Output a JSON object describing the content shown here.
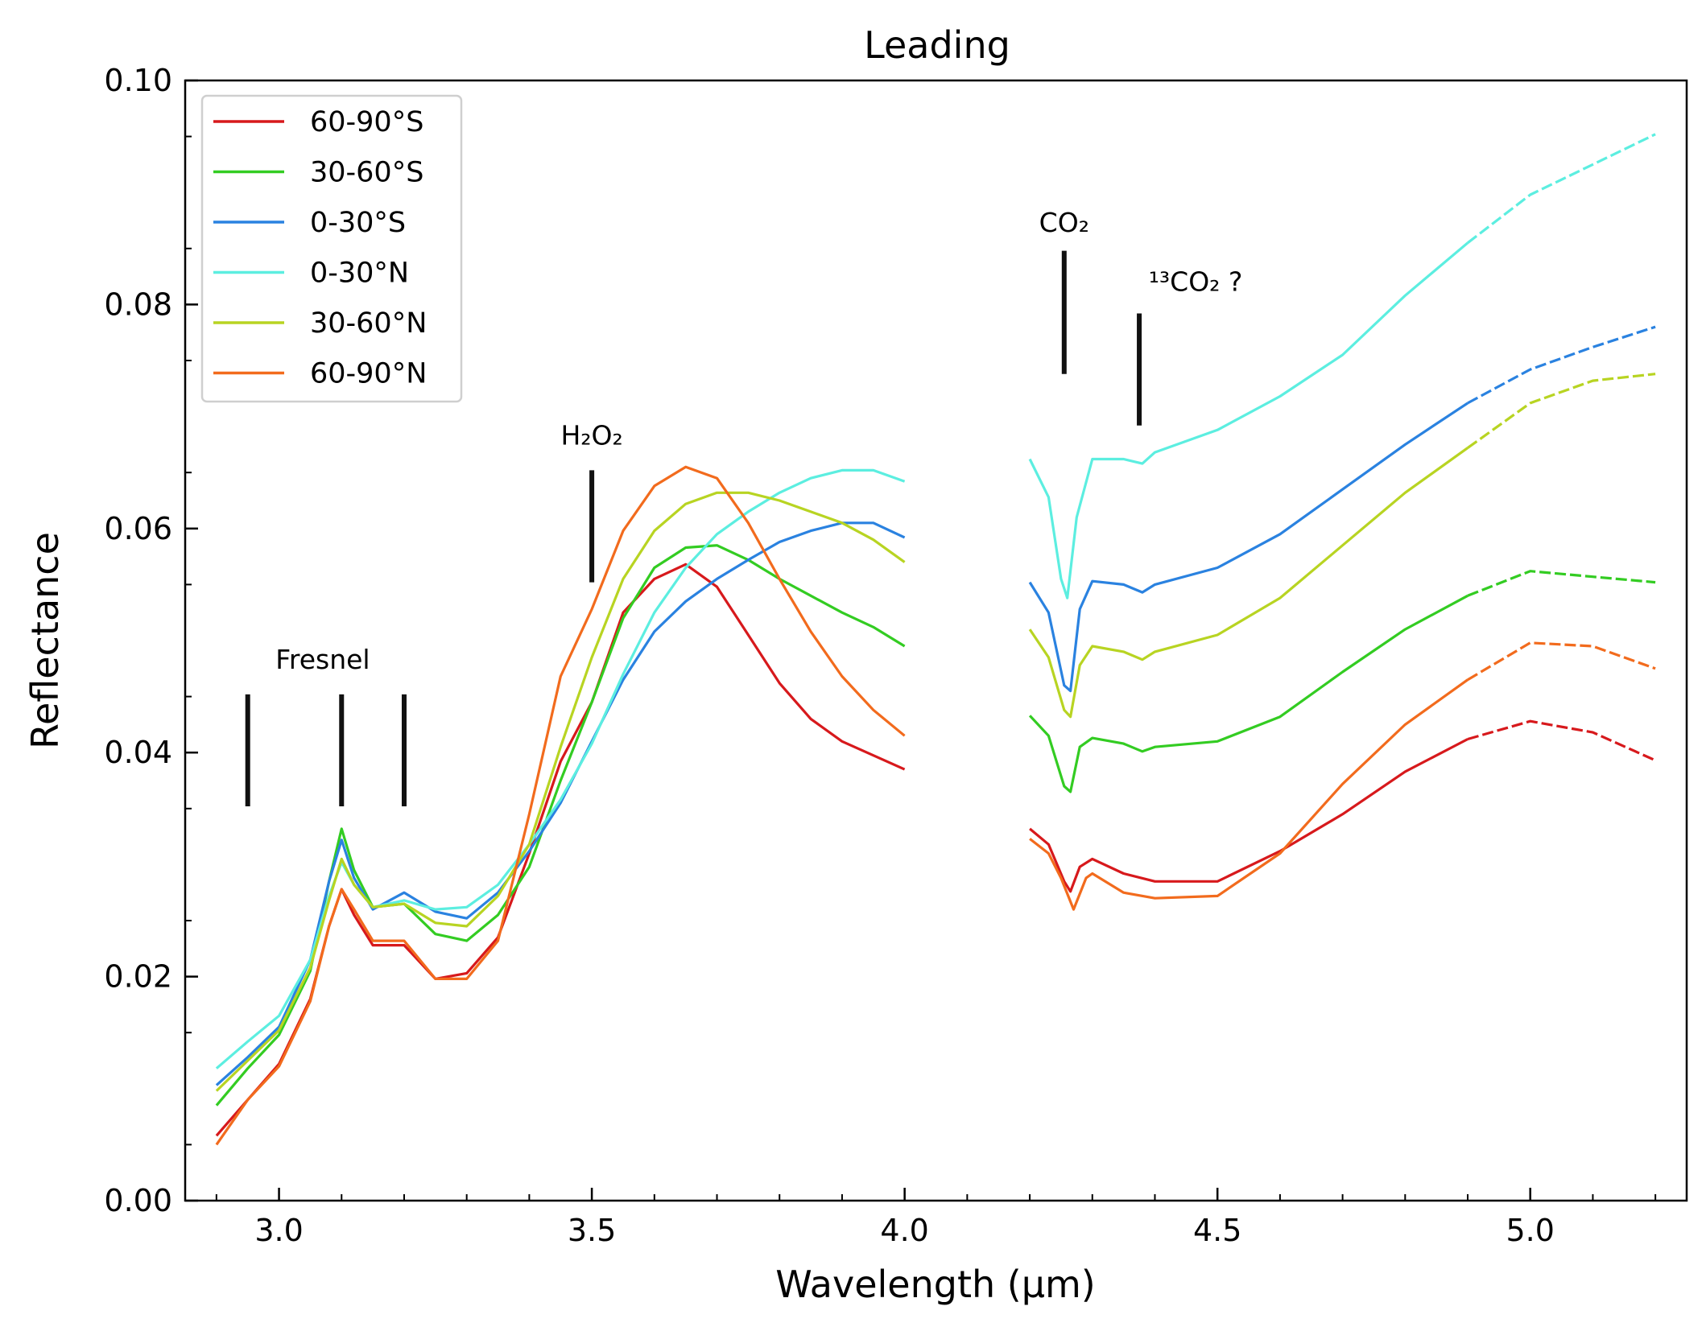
{
  "chart_data": {
    "type": "line",
    "title": "Leading",
    "xlabel": "Wavelength (μm)",
    "ylabel": "Reflectance",
    "xlim": [
      2.85,
      5.25
    ],
    "ylim": [
      0.0,
      0.1
    ],
    "xticks": [
      3.0,
      3.5,
      4.0,
      4.5,
      5.0
    ],
    "xtick_labels": [
      "3.0",
      "3.5",
      "4.0",
      "4.5",
      "5.0"
    ],
    "yticks": [
      0.0,
      0.02,
      0.04,
      0.06,
      0.08,
      0.1
    ],
    "ytick_labels": [
      "0.00",
      "0.02",
      "0.04",
      "0.06",
      "0.08",
      "0.10"
    ],
    "grid": false,
    "legend_position": "top-left",
    "segments_note_dashed_above": 4.95,
    "series": [
      {
        "name": "60-90°S",
        "color": "#d7191c",
        "segment1": [
          [
            2.9,
            0.0058
          ],
          [
            2.95,
            0.009
          ],
          [
            3.0,
            0.0122
          ],
          [
            3.05,
            0.018
          ],
          [
            3.08,
            0.0245
          ],
          [
            3.1,
            0.0278
          ],
          [
            3.12,
            0.0255
          ],
          [
            3.15,
            0.0228
          ],
          [
            3.2,
            0.0228
          ],
          [
            3.25,
            0.0198
          ],
          [
            3.3,
            0.0203
          ],
          [
            3.35,
            0.0235
          ],
          [
            3.4,
            0.031
          ],
          [
            3.45,
            0.0392
          ],
          [
            3.5,
            0.0445
          ],
          [
            3.55,
            0.0525
          ],
          [
            3.6,
            0.0555
          ],
          [
            3.65,
            0.0568
          ],
          [
            3.7,
            0.0548
          ],
          [
            3.75,
            0.0505
          ],
          [
            3.8,
            0.0462
          ],
          [
            3.85,
            0.043
          ],
          [
            3.9,
            0.041
          ],
          [
            4.0,
            0.0385
          ]
        ],
        "segment2": [
          [
            4.2,
            0.0332
          ],
          [
            4.23,
            0.0318
          ],
          [
            4.255,
            0.0285
          ],
          [
            4.265,
            0.0276
          ],
          [
            4.28,
            0.0298
          ],
          [
            4.3,
            0.0305
          ],
          [
            4.35,
            0.0292
          ],
          [
            4.4,
            0.0285
          ],
          [
            4.5,
            0.0285
          ],
          [
            4.6,
            0.0312
          ],
          [
            4.7,
            0.0345
          ],
          [
            4.8,
            0.0383
          ],
          [
            4.9,
            0.0412
          ],
          [
            5.0,
            0.0428
          ],
          [
            5.1,
            0.0418
          ],
          [
            5.2,
            0.0393
          ]
        ]
      },
      {
        "name": "30-60°S",
        "color": "#33cc22",
        "segment1": [
          [
            2.9,
            0.0085
          ],
          [
            2.95,
            0.0118
          ],
          [
            3.0,
            0.0148
          ],
          [
            3.05,
            0.0205
          ],
          [
            3.08,
            0.0285
          ],
          [
            3.1,
            0.0332
          ],
          [
            3.12,
            0.0295
          ],
          [
            3.15,
            0.0262
          ],
          [
            3.2,
            0.0265
          ],
          [
            3.25,
            0.0238
          ],
          [
            3.3,
            0.0232
          ],
          [
            3.35,
            0.0255
          ],
          [
            3.4,
            0.0298
          ],
          [
            3.45,
            0.0375
          ],
          [
            3.5,
            0.0445
          ],
          [
            3.55,
            0.052
          ],
          [
            3.6,
            0.0565
          ],
          [
            3.65,
            0.0583
          ],
          [
            3.7,
            0.0585
          ],
          [
            3.75,
            0.0572
          ],
          [
            3.8,
            0.0555
          ],
          [
            3.85,
            0.054
          ],
          [
            3.9,
            0.0525
          ],
          [
            3.95,
            0.0512
          ],
          [
            4.0,
            0.0495
          ]
        ],
        "segment2": [
          [
            4.2,
            0.0433
          ],
          [
            4.23,
            0.0415
          ],
          [
            4.255,
            0.037
          ],
          [
            4.265,
            0.0365
          ],
          [
            4.28,
            0.0405
          ],
          [
            4.3,
            0.0413
          ],
          [
            4.35,
            0.0408
          ],
          [
            4.38,
            0.0401
          ],
          [
            4.4,
            0.0405
          ],
          [
            4.5,
            0.041
          ],
          [
            4.6,
            0.0432
          ],
          [
            4.7,
            0.0472
          ],
          [
            4.8,
            0.051
          ],
          [
            4.9,
            0.054
          ],
          [
            5.0,
            0.0562
          ],
          [
            5.1,
            0.0557
          ],
          [
            5.2,
            0.0552
          ]
        ]
      },
      {
        "name": "0-30°S",
        "color": "#2a82e0",
        "segment1": [
          [
            2.9,
            0.0103
          ],
          [
            2.95,
            0.0128
          ],
          [
            3.0,
            0.0155
          ],
          [
            3.05,
            0.0215
          ],
          [
            3.08,
            0.0285
          ],
          [
            3.1,
            0.0322
          ],
          [
            3.12,
            0.0288
          ],
          [
            3.15,
            0.026
          ],
          [
            3.2,
            0.0275
          ],
          [
            3.25,
            0.0258
          ],
          [
            3.3,
            0.0252
          ],
          [
            3.35,
            0.0275
          ],
          [
            3.4,
            0.0312
          ],
          [
            3.45,
            0.0355
          ],
          [
            3.5,
            0.041
          ],
          [
            3.55,
            0.0465
          ],
          [
            3.6,
            0.0508
          ],
          [
            3.65,
            0.0535
          ],
          [
            3.7,
            0.0555
          ],
          [
            3.75,
            0.0572
          ],
          [
            3.8,
            0.0588
          ],
          [
            3.85,
            0.0598
          ],
          [
            3.9,
            0.0605
          ],
          [
            3.95,
            0.0605
          ],
          [
            4.0,
            0.0592
          ]
        ],
        "segment2": [
          [
            4.2,
            0.0552
          ],
          [
            4.23,
            0.0525
          ],
          [
            4.255,
            0.046
          ],
          [
            4.265,
            0.0455
          ],
          [
            4.28,
            0.0528
          ],
          [
            4.3,
            0.0553
          ],
          [
            4.35,
            0.055
          ],
          [
            4.38,
            0.0543
          ],
          [
            4.4,
            0.055
          ],
          [
            4.5,
            0.0565
          ],
          [
            4.6,
            0.0595
          ],
          [
            4.7,
            0.0635
          ],
          [
            4.8,
            0.0675
          ],
          [
            4.9,
            0.0712
          ],
          [
            5.0,
            0.0742
          ],
          [
            5.1,
            0.0762
          ],
          [
            5.2,
            0.078
          ]
        ]
      },
      {
        "name": "0-30°N",
        "color": "#5ceee0",
        "segment1": [
          [
            2.9,
            0.0118
          ],
          [
            2.95,
            0.0142
          ],
          [
            3.0,
            0.0165
          ],
          [
            3.05,
            0.0215
          ],
          [
            3.08,
            0.0272
          ],
          [
            3.1,
            0.0302
          ],
          [
            3.12,
            0.0282
          ],
          [
            3.15,
            0.0262
          ],
          [
            3.2,
            0.0268
          ],
          [
            3.25,
            0.026
          ],
          [
            3.3,
            0.0262
          ],
          [
            3.35,
            0.0282
          ],
          [
            3.4,
            0.0318
          ],
          [
            3.45,
            0.0358
          ],
          [
            3.5,
            0.0408
          ],
          [
            3.55,
            0.047
          ],
          [
            3.6,
            0.0525
          ],
          [
            3.65,
            0.0565
          ],
          [
            3.7,
            0.0595
          ],
          [
            3.75,
            0.0615
          ],
          [
            3.8,
            0.0632
          ],
          [
            3.85,
            0.0645
          ],
          [
            3.9,
            0.0652
          ],
          [
            3.95,
            0.0652
          ],
          [
            4.0,
            0.0642
          ]
        ],
        "segment2": [
          [
            4.2,
            0.0662
          ],
          [
            4.23,
            0.0628
          ],
          [
            4.25,
            0.0555
          ],
          [
            4.26,
            0.0538
          ],
          [
            4.275,
            0.061
          ],
          [
            4.3,
            0.0662
          ],
          [
            4.35,
            0.0662
          ],
          [
            4.38,
            0.0658
          ],
          [
            4.4,
            0.0668
          ],
          [
            4.5,
            0.0688
          ],
          [
            4.6,
            0.0718
          ],
          [
            4.7,
            0.0755
          ],
          [
            4.8,
            0.0808
          ],
          [
            4.9,
            0.0855
          ],
          [
            5.0,
            0.0898
          ],
          [
            5.1,
            0.0925
          ],
          [
            5.2,
            0.0952
          ]
        ]
      },
      {
        "name": "30-60°N",
        "color": "#b8d422",
        "segment1": [
          [
            2.9,
            0.0098
          ],
          [
            2.95,
            0.0125
          ],
          [
            3.0,
            0.0152
          ],
          [
            3.05,
            0.0208
          ],
          [
            3.08,
            0.0268
          ],
          [
            3.1,
            0.0305
          ],
          [
            3.12,
            0.0282
          ],
          [
            3.15,
            0.0262
          ],
          [
            3.2,
            0.0265
          ],
          [
            3.25,
            0.0248
          ],
          [
            3.3,
            0.0245
          ],
          [
            3.35,
            0.0272
          ],
          [
            3.4,
            0.0318
          ],
          [
            3.45,
            0.0405
          ],
          [
            3.5,
            0.0485
          ],
          [
            3.55,
            0.0555
          ],
          [
            3.6,
            0.0598
          ],
          [
            3.65,
            0.0622
          ],
          [
            3.7,
            0.0632
          ],
          [
            3.75,
            0.0632
          ],
          [
            3.8,
            0.0625
          ],
          [
            3.85,
            0.0615
          ],
          [
            3.9,
            0.0605
          ],
          [
            3.95,
            0.059
          ],
          [
            4.0,
            0.057
          ]
        ],
        "segment2": [
          [
            4.2,
            0.051
          ],
          [
            4.23,
            0.0485
          ],
          [
            4.255,
            0.0438
          ],
          [
            4.265,
            0.0432
          ],
          [
            4.28,
            0.0478
          ],
          [
            4.3,
            0.0495
          ],
          [
            4.35,
            0.049
          ],
          [
            4.38,
            0.0483
          ],
          [
            4.4,
            0.049
          ],
          [
            4.5,
            0.0505
          ],
          [
            4.6,
            0.0538
          ],
          [
            4.7,
            0.0585
          ],
          [
            4.8,
            0.0632
          ],
          [
            4.9,
            0.0672
          ],
          [
            5.0,
            0.0712
          ],
          [
            5.1,
            0.0732
          ],
          [
            5.2,
            0.0738
          ]
        ]
      },
      {
        "name": "60-90°N",
        "color": "#f26b1d",
        "segment1": [
          [
            2.9,
            0.005
          ],
          [
            2.95,
            0.009
          ],
          [
            3.0,
            0.012
          ],
          [
            3.05,
            0.0178
          ],
          [
            3.08,
            0.0245
          ],
          [
            3.1,
            0.0278
          ],
          [
            3.12,
            0.026
          ],
          [
            3.15,
            0.0232
          ],
          [
            3.2,
            0.0232
          ],
          [
            3.25,
            0.0198
          ],
          [
            3.3,
            0.0198
          ],
          [
            3.35,
            0.0232
          ],
          [
            3.4,
            0.0345
          ],
          [
            3.45,
            0.0468
          ],
          [
            3.5,
            0.0528
          ],
          [
            3.55,
            0.0598
          ],
          [
            3.6,
            0.0638
          ],
          [
            3.65,
            0.0655
          ],
          [
            3.7,
            0.0645
          ],
          [
            3.75,
            0.0605
          ],
          [
            3.8,
            0.0555
          ],
          [
            3.85,
            0.0508
          ],
          [
            3.9,
            0.0468
          ],
          [
            3.95,
            0.0438
          ],
          [
            4.0,
            0.0415
          ]
        ],
        "segment2": [
          [
            4.2,
            0.0323
          ],
          [
            4.23,
            0.031
          ],
          [
            4.25,
            0.0288
          ],
          [
            4.27,
            0.026
          ],
          [
            4.29,
            0.0288
          ],
          [
            4.3,
            0.0292
          ],
          [
            4.35,
            0.0275
          ],
          [
            4.4,
            0.027
          ],
          [
            4.5,
            0.0272
          ],
          [
            4.6,
            0.031
          ],
          [
            4.7,
            0.0372
          ],
          [
            4.8,
            0.0425
          ],
          [
            4.9,
            0.0465
          ],
          [
            5.0,
            0.0498
          ],
          [
            5.1,
            0.0495
          ],
          [
            5.2,
            0.0475
          ]
        ]
      }
    ],
    "annotations": [
      {
        "text": "Fresnel",
        "markers_x": [
          2.95,
          3.1,
          3.2
        ],
        "marker_y": [
          0.0352,
          0.0452
        ],
        "label_x": 3.07,
        "label_y": 0.0475
      },
      {
        "text": "H₂O₂",
        "markers_x": [
          3.5
        ],
        "marker_y": [
          0.0552,
          0.0652
        ],
        "label_x": 3.5,
        "label_y": 0.0675
      },
      {
        "text": "CO₂",
        "markers_x": [
          4.255
        ],
        "marker_y": [
          0.0738,
          0.0848
        ],
        "label_x": 4.255,
        "label_y": 0.0865
      },
      {
        "text": "¹³CO₂ ?",
        "markers_x": [
          4.375
        ],
        "marker_y": [
          0.0692,
          0.0792
        ],
        "label_x": 4.39,
        "label_y": 0.0812
      }
    ]
  }
}
